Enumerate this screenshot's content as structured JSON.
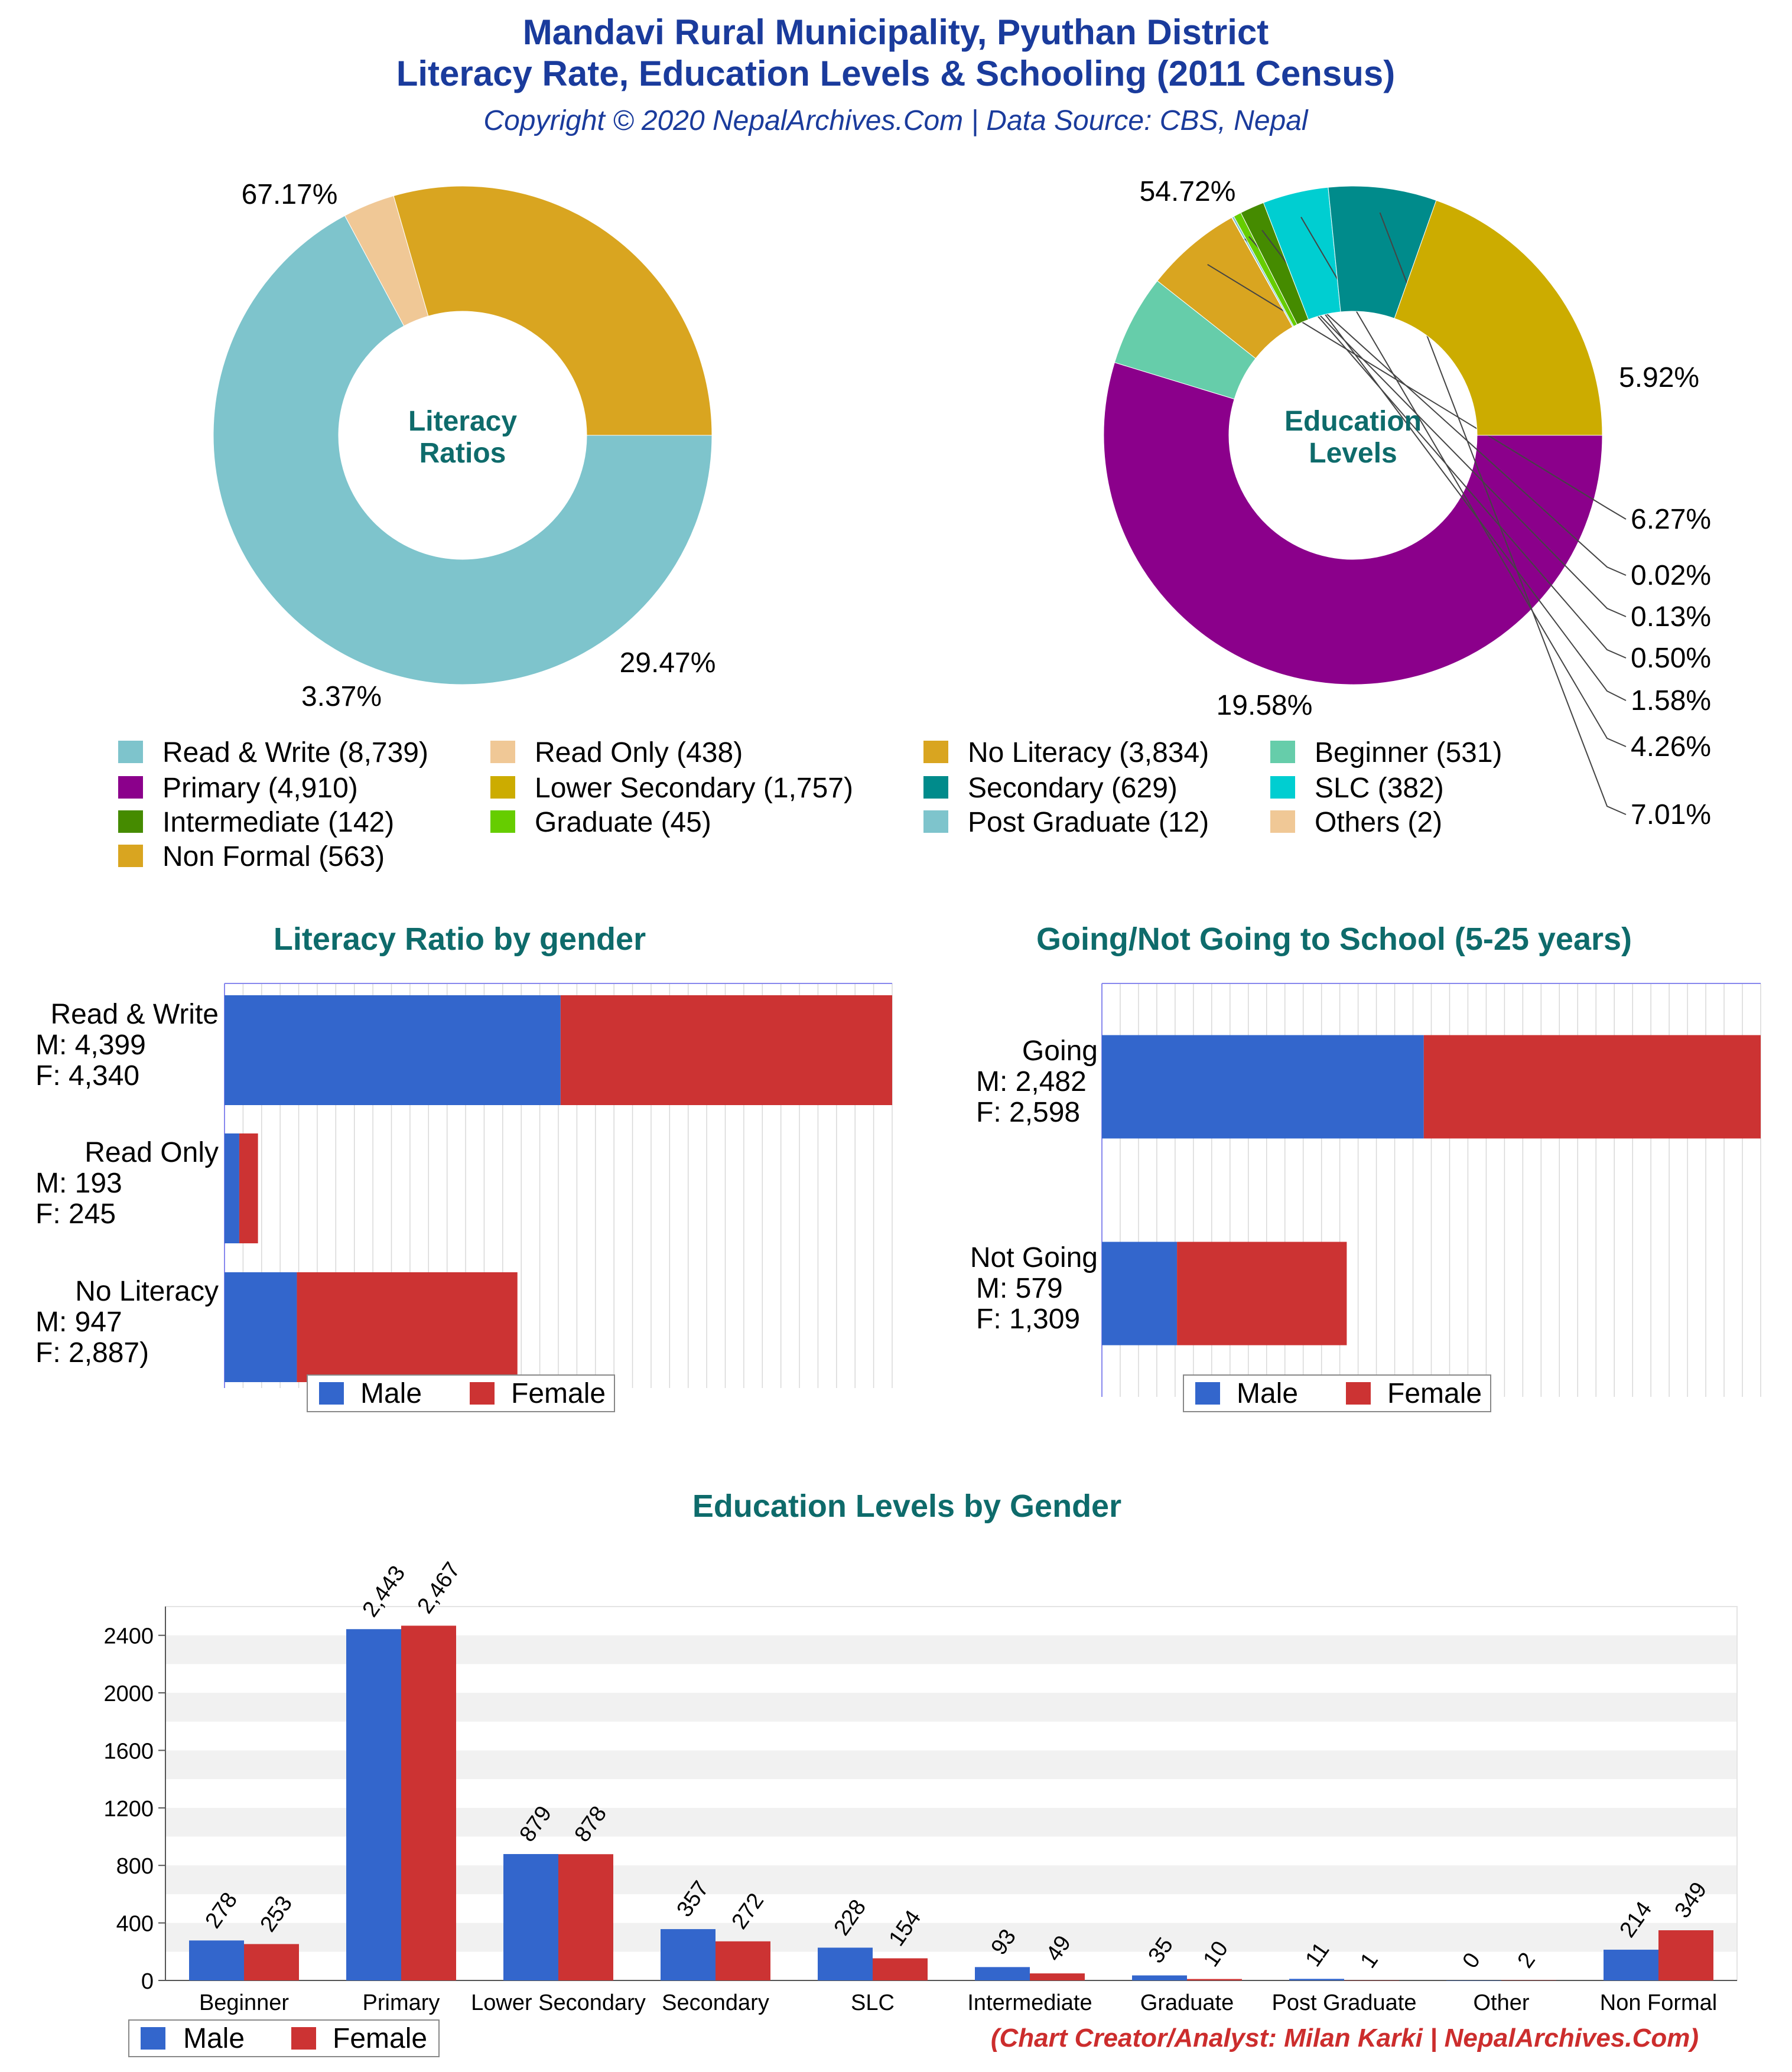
{
  "header": {
    "title_line1": "Mandavi Rural Municipality, Pyuthan District",
    "title_line2": "Literacy Rate, Education Levels & Schooling (2011 Census)",
    "subtitle": "Copyright © 2020 NepalArchives.Com | Data Source: CBS, Nepal"
  },
  "credit": "(Chart Creator/Analyst: Milan Karki | NepalArchives.Com)",
  "legend_items": [
    {
      "label": "Read & Write (8,739)",
      "color": "#7ec4cc"
    },
    {
      "label": "Read Only (438)",
      "color": "#f0c896"
    },
    {
      "label": "No Literacy (3,834)",
      "color": "#d9a520"
    },
    {
      "label": "Beginner (531)",
      "color": "#66cdaa"
    },
    {
      "label": "Primary (4,910)",
      "color": "#8b008b"
    },
    {
      "label": "Lower Secondary (1,757)",
      "color": "#ccac00"
    },
    {
      "label": "Secondary (629)",
      "color": "#008b8b"
    },
    {
      "label": "SLC (382)",
      "color": "#00ced1"
    },
    {
      "label": "Intermediate (142)",
      "color": "#458b00"
    },
    {
      "label": "Graduate (45)",
      "color": "#66cd00"
    },
    {
      "label": "Post Graduate (12)",
      "color": "#7ec4cc"
    },
    {
      "label": "Others (2)",
      "color": "#f0c896"
    },
    {
      "label": "Non Formal (563)",
      "color": "#d9a520"
    }
  ],
  "gender_legend": {
    "male": "Male",
    "female": "Female",
    "male_color": "#3366cc",
    "female_color": "#cc3333"
  },
  "chart_data": [
    {
      "type": "pie",
      "center_label": [
        "Literacy",
        "Ratios"
      ],
      "slices": [
        {
          "name": "Read & Write",
          "value": 8739,
          "percent": "67.17%",
          "color": "#7ec4cc"
        },
        {
          "name": "Read Only",
          "value": 438,
          "percent": "3.37%",
          "color": "#f0c896"
        },
        {
          "name": "No Literacy",
          "value": 3834,
          "percent": "29.47%",
          "color": "#d9a520"
        }
      ]
    },
    {
      "type": "pie",
      "center_label": [
        "Education",
        "Levels"
      ],
      "slices": [
        {
          "name": "Primary",
          "value": 4910,
          "percent": "54.72%",
          "color": "#8b008b"
        },
        {
          "name": "Beginner",
          "value": 531,
          "percent": "5.92%",
          "color": "#66cdaa"
        },
        {
          "name": "Non Formal",
          "value": 563,
          "percent": "6.27%",
          "color": "#d9a520"
        },
        {
          "name": "Others",
          "value": 2,
          "percent": "0.02%",
          "color": "#f0c896"
        },
        {
          "name": "Post Graduate",
          "value": 12,
          "percent": "0.13%",
          "color": "#7ec4cc"
        },
        {
          "name": "Graduate",
          "value": 45,
          "percent": "0.50%",
          "color": "#66cd00"
        },
        {
          "name": "Intermediate",
          "value": 142,
          "percent": "1.58%",
          "color": "#458b00"
        },
        {
          "name": "SLC",
          "value": 382,
          "percent": "4.26%",
          "color": "#00ced1"
        },
        {
          "name": "Secondary",
          "value": 629,
          "percent": "7.01%",
          "color": "#008b8b"
        },
        {
          "name": "Lower Secondary",
          "value": 1757,
          "percent": "19.58%",
          "color": "#ccac00"
        }
      ]
    },
    {
      "type": "bar",
      "orientation": "horizontal",
      "stacked": true,
      "title": "Literacy Ratio by gender",
      "categories": [
        [
          "Read & Write",
          "M: 4,399",
          "F: 4,340"
        ],
        [
          "Read Only",
          "M: 193",
          "F: 245"
        ],
        [
          "No Literacy",
          "M: 947",
          "F: 2,887)"
        ]
      ],
      "series": [
        {
          "name": "Male",
          "values": [
            4399,
            193,
            947
          ]
        },
        {
          "name": "Female",
          "values": [
            4340,
            245,
            2887
          ]
        }
      ],
      "xlim": [
        0,
        8739
      ]
    },
    {
      "type": "bar",
      "orientation": "horizontal",
      "stacked": true,
      "title": "Going/Not Going to School (5-25 years)",
      "categories": [
        [
          "Going",
          "M: 2,482",
          "F: 2,598"
        ],
        [
          "Not Going",
          "M: 579",
          "F: 1,309"
        ]
      ],
      "series": [
        {
          "name": "Male",
          "values": [
            2482,
            579
          ]
        },
        {
          "name": "Female",
          "values": [
            2598,
            1309
          ]
        }
      ],
      "xlim": [
        0,
        5080
      ]
    },
    {
      "type": "bar",
      "title": "Education Levels by Gender",
      "categories": [
        "Beginner",
        "Primary",
        "Lower Secondary",
        "Secondary",
        "SLC",
        "Intermediate",
        "Graduate",
        "Post Graduate",
        "Other",
        "Non Formal"
      ],
      "series": [
        {
          "name": "Male",
          "values": [
            278,
            2443,
            879,
            357,
            228,
            93,
            35,
            11,
            0,
            214
          ],
          "labels": [
            "278",
            "2,443",
            "879",
            "357",
            "228",
            "93",
            "35",
            "11",
            "0",
            "214"
          ]
        },
        {
          "name": "Female",
          "values": [
            253,
            2467,
            878,
            272,
            154,
            49,
            10,
            1,
            2,
            349
          ],
          "labels": [
            "253",
            "2,467",
            "878",
            "272",
            "154",
            "49",
            "10",
            "1",
            "2",
            "349"
          ]
        }
      ],
      "yticks": [
        "0",
        "400",
        "800",
        "1200",
        "1600",
        "2000",
        "2400"
      ],
      "ylim": [
        0,
        2600
      ],
      "grid": true
    }
  ]
}
